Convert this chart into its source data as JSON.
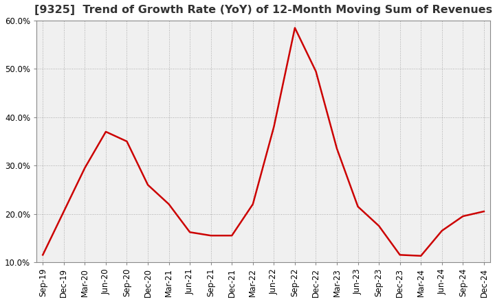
{
  "title": "[9325]  Trend of Growth Rate (YoY) of 12-Month Moving Sum of Revenues",
  "x_labels": [
    "Sep-19",
    "Dec-19",
    "Mar-20",
    "Jun-20",
    "Sep-20",
    "Dec-20",
    "Mar-21",
    "Jun-21",
    "Sep-21",
    "Dec-21",
    "Mar-22",
    "Jun-22",
    "Sep-22",
    "Dec-22",
    "Mar-23",
    "Jun-23",
    "Sep-23",
    "Dec-23",
    "Mar-24",
    "Jun-24",
    "Sep-24",
    "Dec-24"
  ],
  "y_values": [
    0.115,
    0.205,
    0.295,
    0.37,
    0.35,
    0.26,
    0.22,
    0.162,
    0.155,
    0.155,
    0.22,
    0.38,
    0.585,
    0.495,
    0.335,
    0.215,
    0.175,
    0.115,
    0.113,
    0.165,
    0.195,
    0.205
  ],
  "line_color": "#cc0000",
  "line_width": 1.8,
  "ylim": [
    0.1,
    0.6
  ],
  "yticks": [
    0.1,
    0.2,
    0.3,
    0.4,
    0.5,
    0.6
  ],
  "ytick_labels": [
    "10.0%",
    "20.0%",
    "30.0%",
    "40.0%",
    "50.0%",
    "60.0%"
  ],
  "background_color": "#ffffff",
  "plot_bg_color": "#f0f0f0",
  "grid_color": "#aaaaaa",
  "title_fontsize": 11.5,
  "tick_fontsize": 8.5,
  "title_color": "#333333"
}
